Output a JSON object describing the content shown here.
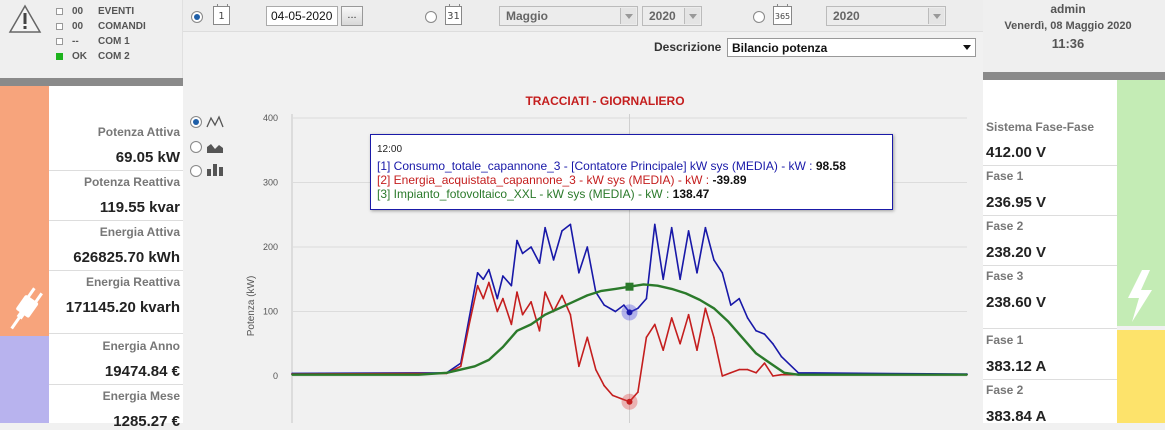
{
  "status": {
    "rows": [
      {
        "code": "00",
        "label": "EVENTI",
        "active": false
      },
      {
        "code": "00",
        "label": "COMANDI",
        "active": false
      },
      {
        "code": "--",
        "label": "COM 1",
        "active": false
      },
      {
        "code": "OK",
        "label": "COM 2",
        "active": true
      }
    ]
  },
  "toolbar": {
    "day_icon": "1",
    "day_date": "04-05-2020",
    "dots_label": "...",
    "month_icon": "31",
    "month_value": "Maggio",
    "month_year": "2020",
    "year_icon": "365",
    "year_value": "2020",
    "description_label": "Descrizione",
    "description_value": "Bilancio potenza"
  },
  "left_panel": {
    "items": [
      {
        "label": "Potenza Attiva",
        "value": "69.05 kW"
      },
      {
        "label": "Potenza Reattiva",
        "value": "119.55 kvar"
      },
      {
        "label": "Energia Attiva",
        "value": "626825.70 kWh"
      },
      {
        "label": "Energia Reattiva",
        "value": "171145.20 kvarh"
      },
      {
        "label": "Energia Anno",
        "value": "19474.84 €"
      },
      {
        "label": "Energia Mese",
        "value": "1285.27 €"
      }
    ],
    "colors": {
      "top": "#f7a47c",
      "bottom": "#b8b3ee"
    }
  },
  "user": {
    "name": "admin",
    "date": "Venerdì, 08 Maggio 2020",
    "time": "11:36"
  },
  "right_panel": {
    "items": [
      {
        "label": "Sistema Fase-Fase",
        "value": "412.00 V"
      },
      {
        "label": "Fase 1",
        "value": "236.95 V"
      },
      {
        "label": "Fase 2",
        "value": "238.20 V"
      },
      {
        "label": "Fase 3",
        "value": "238.60 V"
      },
      {
        "label": "Fase 1",
        "value": "383.12 A"
      },
      {
        "label": "Fase 2",
        "value": "383.84 A"
      }
    ],
    "colors": {
      "top": "#c4ecb5",
      "bottom": "#fde36b"
    }
  },
  "chart_data": {
    "type": "line",
    "title": "TRACCIATI - GIORNALIERO",
    "ylabel": "Potenza (kW)",
    "ylim": [
      -40,
      400
    ],
    "yticks": [
      0,
      100,
      200,
      300,
      400
    ],
    "grid": true,
    "x_range_hours": [
      0,
      24
    ],
    "highlight_time": "12:00",
    "tooltip": {
      "time": "12:00",
      "lines": [
        {
          "text": "[1] Consumo_totale_capannone_3 - [Contatore Principale] kW sys (MEDIA) - kW : ",
          "value": "98.58"
        },
        {
          "text": "[2] Energia_acquistata_capannone_3 - kW sys (MEDIA) - kW : ",
          "value": "-39.89"
        },
        {
          "text": "[3] Impianto_fotovoltaico_XXL - kW sys (MEDIA) - kW : ",
          "value": "138.47"
        }
      ]
    },
    "series": [
      {
        "name": "[1] Consumo_totale_capannone_3",
        "color": "#1818a8",
        "x": [
          0,
          5.5,
          6,
          6.3,
          6.6,
          6.8,
          7.0,
          7.3,
          7.5,
          7.8,
          8.0,
          8.2,
          8.5,
          8.8,
          9.0,
          9.3,
          9.6,
          9.9,
          10.2,
          10.5,
          10.8,
          11.1,
          11.5,
          11.8,
          12.0,
          12.3,
          12.6,
          12.9,
          13.2,
          13.5,
          13.8,
          14.1,
          14.4,
          14.7,
          15.0,
          15.3,
          15.6,
          15.9,
          16.2,
          16.5,
          16.8,
          17.1,
          17.4,
          18.0,
          24
        ],
        "y": [
          4,
          5,
          20,
          90,
          160,
          150,
          165,
          120,
          155,
          140,
          210,
          190,
          200,
          175,
          230,
          180,
          225,
          235,
          160,
          200,
          130,
          110,
          100,
          110,
          98.58,
          105,
          120,
          235,
          150,
          230,
          150,
          225,
          160,
          230,
          180,
          160,
          110,
          120,
          90,
          70,
          65,
          50,
          30,
          5,
          3
        ]
      },
      {
        "name": "[2] Energia_acquistata_capannone_3",
        "color": "#c41e1e",
        "x": [
          0,
          5.5,
          6,
          6.3,
          6.6,
          6.8,
          7.0,
          7.3,
          7.5,
          7.8,
          8.0,
          8.2,
          8.5,
          8.8,
          9.0,
          9.3,
          9.6,
          9.9,
          10.2,
          10.5,
          10.8,
          11.1,
          11.4,
          11.7,
          12.0,
          12.3,
          12.6,
          12.9,
          13.2,
          13.5,
          13.8,
          14.1,
          14.4,
          14.7,
          15.0,
          15.3,
          15.6,
          15.9,
          16.2,
          16.5,
          16.8,
          17.1,
          17.4,
          18.0,
          24
        ],
        "y": [
          3,
          4,
          15,
          80,
          140,
          120,
          145,
          100,
          120,
          80,
          130,
          95,
          115,
          70,
          130,
          100,
          125,
          95,
          15,
          60,
          10,
          -15,
          -30,
          -35,
          -39.89,
          -25,
          60,
          80,
          40,
          90,
          50,
          95,
          40,
          105,
          60,
          0,
          5,
          10,
          10,
          5,
          20,
          0,
          2,
          2,
          2
        ]
      },
      {
        "name": "[3] Impianto_fotovoltaico_XXL",
        "color": "#2b7a2b",
        "x": [
          0,
          4.5,
          5.5,
          6.0,
          6.5,
          7.0,
          7.5,
          8.0,
          8.5,
          9.0,
          9.5,
          10.0,
          10.5,
          11.0,
          11.5,
          12.0,
          12.5,
          13.0,
          13.5,
          14.0,
          14.5,
          15.0,
          15.5,
          16.0,
          16.5,
          17.0,
          17.5,
          18.0,
          24
        ],
        "y": [
          2,
          2,
          5,
          10,
          15,
          25,
          45,
          70,
          80,
          95,
          105,
          115,
          125,
          132,
          135,
          138.47,
          142,
          140,
          135,
          128,
          118,
          105,
          85,
          60,
          35,
          20,
          5,
          2,
          2
        ]
      }
    ]
  }
}
